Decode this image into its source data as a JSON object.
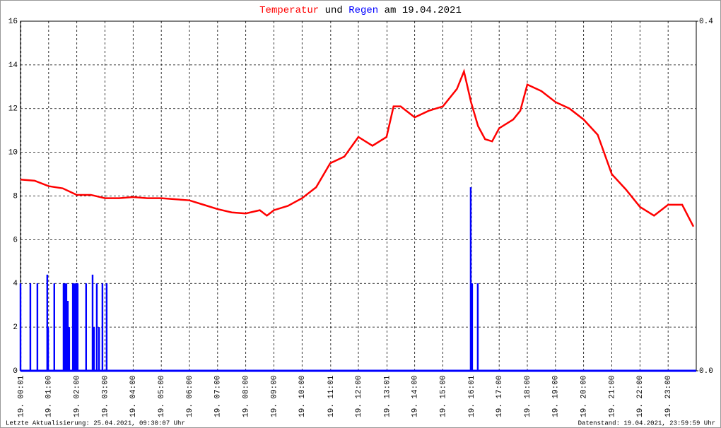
{
  "chart_data": {
    "type": "line",
    "title_parts": [
      "und",
      "am 19.04.2021"
    ],
    "series": [
      {
        "name": "Temperatur",
        "color": "#ff0000",
        "x": [
          0,
          0.5,
          1,
          1.5,
          2,
          2.5,
          3,
          3.5,
          4,
          4.5,
          5,
          5.5,
          6,
          6.5,
          7,
          7.5,
          8,
          8.5,
          8.75,
          9,
          9.5,
          10,
          10.5,
          11,
          11.5,
          12,
          12.5,
          13,
          13.25,
          13.5,
          14,
          14.5,
          15,
          15.5,
          15.75,
          16,
          16.25,
          16.5,
          16.75,
          17,
          17.5,
          17.75,
          18,
          18.5,
          19,
          19.5,
          20,
          20.5,
          21,
          21.5,
          22,
          22.5,
          23,
          23.5,
          23.9
        ],
        "values": [
          8.75,
          8.7,
          8.45,
          8.35,
          8.05,
          8.05,
          7.9,
          7.9,
          7.95,
          7.9,
          7.9,
          7.85,
          7.8,
          7.6,
          7.4,
          7.25,
          7.2,
          7.35,
          7.1,
          7.35,
          7.55,
          7.9,
          8.4,
          9.5,
          9.8,
          10.7,
          10.3,
          10.7,
          12.1,
          12.1,
          11.6,
          11.9,
          12.1,
          12.9,
          13.7,
          12.3,
          11.2,
          10.6,
          10.5,
          11.1,
          11.5,
          11.9,
          13.1,
          12.8,
          12.3,
          12.0,
          11.5,
          10.8,
          9.0,
          8.3,
          7.5,
          7.1,
          7.6,
          7.6,
          6.6
        ]
      },
      {
        "name": "Regen",
        "color": "#0000ff",
        "axis": "y2",
        "kind": "bar",
        "x": [
          0,
          0.35,
          0.6,
          0.95,
          0.98,
          1.2,
          1.53,
          1.58,
          1.63,
          1.68,
          1.73,
          1.86,
          1.91,
          1.96,
          2.01,
          2.03,
          2.33,
          2.56,
          2.61,
          2.71,
          2.79,
          2.91,
          3.06,
          15.99,
          16.04,
          16.24
        ],
        "values": [
          0.1,
          0.1,
          0.1,
          0.11,
          0.05,
          0.1,
          0.1,
          0.1,
          0.1,
          0.08,
          0.05,
          0.1,
          0.1,
          0.1,
          0.1,
          0.1,
          0.1,
          0.11,
          0.05,
          0.1,
          0.05,
          0.1,
          0.1,
          0.21,
          0.1,
          0.1
        ]
      }
    ],
    "xlim": [
      0,
      24
    ],
    "xticks": [
      {
        "value": 0.017,
        "label": "19. 00:01"
      },
      {
        "value": 1,
        "label": "19. 01:00"
      },
      {
        "value": 2,
        "label": "19. 02:00"
      },
      {
        "value": 3,
        "label": "19. 03:00"
      },
      {
        "value": 4,
        "label": "19. 04:00"
      },
      {
        "value": 5,
        "label": "19. 05:00"
      },
      {
        "value": 6,
        "label": "19. 06:00"
      },
      {
        "value": 7,
        "label": "19. 07:00"
      },
      {
        "value": 8,
        "label": "19. 08:00"
      },
      {
        "value": 9,
        "label": "19. 09:00"
      },
      {
        "value": 10,
        "label": "19. 10:00"
      },
      {
        "value": 11.017,
        "label": "19. 11:01"
      },
      {
        "value": 12,
        "label": "19. 12:00"
      },
      {
        "value": 13.017,
        "label": "19. 13:01"
      },
      {
        "value": 14,
        "label": "19. 14:00"
      },
      {
        "value": 15,
        "label": "19. 15:00"
      },
      {
        "value": 16.017,
        "label": "19. 16:01"
      },
      {
        "value": 17,
        "label": "19. 17:00"
      },
      {
        "value": 18,
        "label": "19. 18:00"
      },
      {
        "value": 19,
        "label": "19. 19:00"
      },
      {
        "value": 20,
        "label": "19. 20:00"
      },
      {
        "value": 21,
        "label": "19. 21:00"
      },
      {
        "value": 22,
        "label": "19. 22:00"
      },
      {
        "value": 23,
        "label": "19. 23:00"
      }
    ],
    "ylim": [
      0,
      16
    ],
    "yticks": [
      0,
      2,
      4,
      6,
      8,
      10,
      12,
      14,
      16
    ],
    "y2lim": [
      0,
      0.4
    ],
    "y2ticks": [
      {
        "value": 0,
        "label": "0.0"
      },
      {
        "value": 0.4,
        "label": "0.4"
      }
    ],
    "grid": true,
    "footer_left": "Letzte Aktualisierung: 25.04.2021, 09:30:07 Uhr",
    "footer_right": "Datenstand: 19.04.2021, 23:59:59 Uhr"
  }
}
